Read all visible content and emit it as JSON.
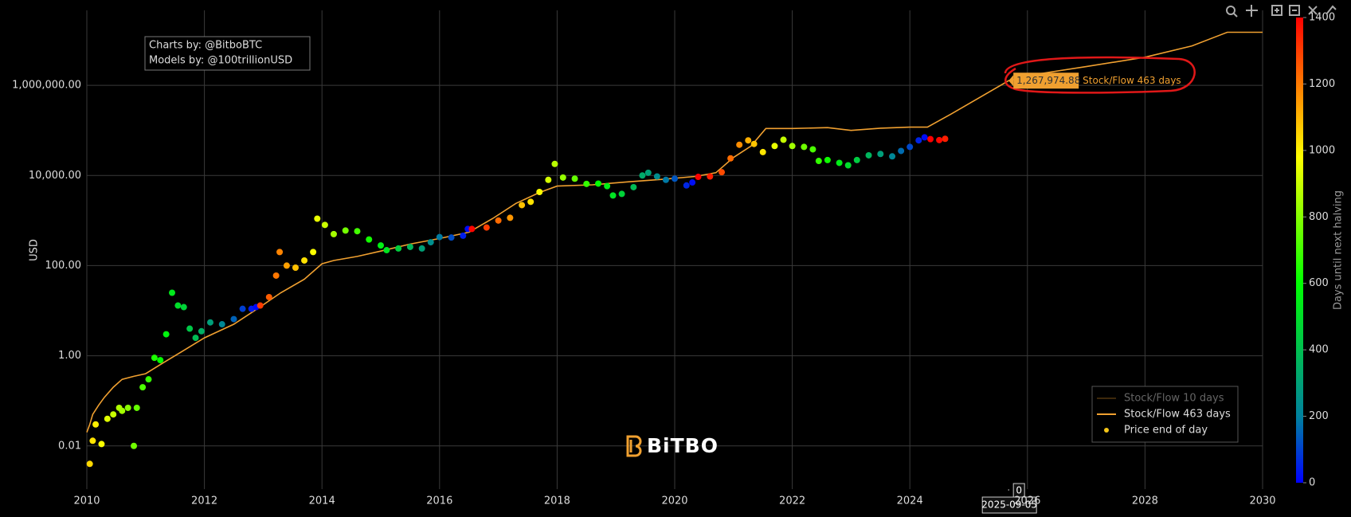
{
  "chart_data": {
    "type": "scatter",
    "ylabel": "USD",
    "log_y": true,
    "grid": true,
    "xlim": [
      2010,
      2030
    ],
    "xticks": [
      2010,
      2012,
      2014,
      2016,
      2018,
      2020,
      2022,
      2024,
      2026,
      2028,
      2030
    ],
    "ylim": [
      0.0011,
      46000000
    ],
    "yticks": [
      {
        "value": 0.01,
        "label": "0.01"
      },
      {
        "value": 1,
        "label": "1.00"
      },
      {
        "value": 100,
        "label": "100.00"
      },
      {
        "value": 10000,
        "label": "10,000.00"
      },
      {
        "value": 1000000,
        "label": "1,000,000.00"
      }
    ],
    "legend_position": "lower right",
    "series": [
      {
        "name": "Stock/Flow 10 days",
        "color": "#8a5a1a",
        "visible": false
      },
      {
        "name": "Stock/Flow 463 days",
        "color": "#f0a030",
        "mode": "line",
        "x": [
          2010.0,
          2010.05,
          2010.1,
          2010.2,
          2010.3,
          2010.45,
          2010.6,
          2010.8,
          2011.0,
          2011.3,
          2011.6,
          2012.0,
          2012.5,
          2012.9,
          2013.3,
          2013.7,
          2014.0,
          2014.2,
          2014.6,
          2015.0,
          2015.5,
          2016.0,
          2016.5,
          2016.9,
          2017.3,
          2017.7,
          2018.0,
          2018.6,
          2019.2,
          2019.8,
          2020.35,
          2020.7,
          2021.0,
          2021.3,
          2021.55,
          2022.0,
          2022.6,
          2023.0,
          2023.5,
          2024.0,
          2024.3,
          2024.7,
          2025.2,
          2025.68,
          2026.2,
          2027.0,
          2028.0,
          2028.8,
          2029.4,
          2030.0
        ],
        "values": [
          0.02,
          0.03,
          0.05,
          0.08,
          0.12,
          0.2,
          0.3,
          0.35,
          0.4,
          0.7,
          1.2,
          2.5,
          5,
          11,
          25,
          50,
          110,
          130,
          160,
          210,
          300,
          400,
          550,
          1100,
          2400,
          4200,
          5800,
          6200,
          7200,
          8200,
          9500,
          11500,
          25000,
          45000,
          110000,
          110000,
          115000,
          100000,
          112000,
          118000,
          118000,
          230000,
          550000,
          1267974.88,
          1800000,
          2600000,
          4200000,
          7500000,
          15000000,
          15000000
        ]
      },
      {
        "name": "Price end of day",
        "color": "#f5c518",
        "mode": "markers",
        "color_by": "days",
        "x": [
          2010.05,
          2010.1,
          2010.15,
          2010.25,
          2010.35,
          2010.45,
          2010.55,
          2010.6,
          2010.7,
          2010.8,
          2010.85,
          2010.95,
          2011.05,
          2011.15,
          2011.25,
          2011.35,
          2011.45,
          2011.55,
          2011.65,
          2011.75,
          2011.85,
          2011.95,
          2012.1,
          2012.3,
          2012.5,
          2012.65,
          2012.8,
          2012.88,
          2012.95,
          2013.1,
          2013.22,
          2013.28,
          2013.4,
          2013.55,
          2013.7,
          2013.85,
          2013.92,
          2014.05,
          2014.2,
          2014.4,
          2014.6,
          2014.8,
          2015.0,
          2015.1,
          2015.3,
          2015.5,
          2015.7,
          2015.85,
          2016.0,
          2016.2,
          2016.4,
          2016.48,
          2016.55,
          2016.8,
          2017.0,
          2017.2,
          2017.4,
          2017.55,
          2017.7,
          2017.85,
          2017.96,
          2018.1,
          2018.3,
          2018.5,
          2018.7,
          2018.85,
          2018.95,
          2019.1,
          2019.3,
          2019.45,
          2019.55,
          2019.7,
          2019.85,
          2020.0,
          2020.2,
          2020.3,
          2020.4,
          2020.6,
          2020.8,
          2020.95,
          2021.1,
          2021.25,
          2021.35,
          2021.5,
          2021.7,
          2021.85,
          2022.0,
          2022.2,
          2022.35,
          2022.45,
          2022.6,
          2022.8,
          2022.95,
          2023.1,
          2023.3,
          2023.5,
          2023.7,
          2023.85,
          2024.0,
          2024.15,
          2024.25,
          2024.35,
          2024.5,
          2024.6
        ],
        "values": [
          0.004,
          0.013,
          0.03,
          0.011,
          0.04,
          0.05,
          0.07,
          0.06,
          0.07,
          0.01,
          0.07,
          0.2,
          0.3,
          0.9,
          0.8,
          3,
          25,
          13,
          12,
          4,
          2.5,
          3.5,
          5.5,
          5,
          6.5,
          11,
          11,
          12,
          13,
          20,
          60,
          200,
          100,
          90,
          130,
          200,
          1100,
          800,
          500,
          600,
          580,
          380,
          280,
          220,
          240,
          260,
          240,
          330,
          430,
          420,
          460,
          650,
          650,
          700,
          1000,
          1150,
          2200,
          2600,
          4300,
          8000,
          18000,
          9000,
          8500,
          6500,
          6600,
          5800,
          3600,
          3900,
          5500,
          10000,
          11500,
          9500,
          8000,
          8500,
          6000,
          7000,
          9300,
          9500,
          11800,
          24000,
          48000,
          60000,
          50000,
          33000,
          45000,
          62000,
          45000,
          43000,
          38000,
          21000,
          22000,
          19000,
          16800,
          22000,
          28000,
          30000,
          26500,
          35000,
          43000,
          60000,
          70000,
          64000,
          61000,
          65000
        ],
        "days": [
          1044,
          1026,
          1007,
          971,
          934,
          898,
          861,
          843,
          807,
          770,
          752,
          715,
          679,
          642,
          606,
          569,
          533,
          496,
          460,
          423,
          387,
          350,
          296,
          223,
          150,
          95,
          40,
          11,
          1303,
          1249,
          1205,
          1183,
          1139,
          1084,
          1029,
          975,
          949,
          901,
          847,
          774,
          701,
          628,
          555,
          518,
          445,
          372,
          299,
          245,
          190,
          117,
          44,
          15,
          1391,
          1299,
          1226,
          1153,
          1081,
          1026,
          971,
          916,
          876,
          825,
          752,
          679,
          606,
          551,
          515,
          460,
          387,
          332,
          303,
          241,
          186,
          131,
          58,
          22,
          1424,
          1351,
          1278,
          1223,
          1168,
          1113,
          1077,
          1022,
          949,
          894,
          840,
          767,
          712,
          675,
          621,
          548,
          493,
          438,
          365,
          292,
          219,
          164,
          110,
          55,
          18,
          1442,
          1387,
          1351
        ]
      }
    ],
    "colorbar": {
      "title": "Days until next halving",
      "lim": [
        0,
        1400
      ],
      "ticks": [
        0,
        200,
        400,
        600,
        800,
        1000,
        1200,
        1400
      ],
      "colorscale": [
        [
          0,
          "#0000ff"
        ],
        [
          0.14,
          "#0080a0"
        ],
        [
          0.43,
          "#00ff00"
        ],
        [
          0.7,
          "#ffff00"
        ],
        [
          0.85,
          "#ff8000"
        ],
        [
          1,
          "#ff0000"
        ]
      ]
    },
    "annotations": [
      "Charts by: @BitboBTC",
      "Models by: @100trillionUSD"
    ],
    "logo": "BiTBO",
    "tooltip": {
      "x": 2025.68,
      "x_label": "2025-09-05",
      "value": 1267974.88,
      "value_label": "1,267,974.88",
      "series": 1,
      "days_label": "0"
    }
  }
}
